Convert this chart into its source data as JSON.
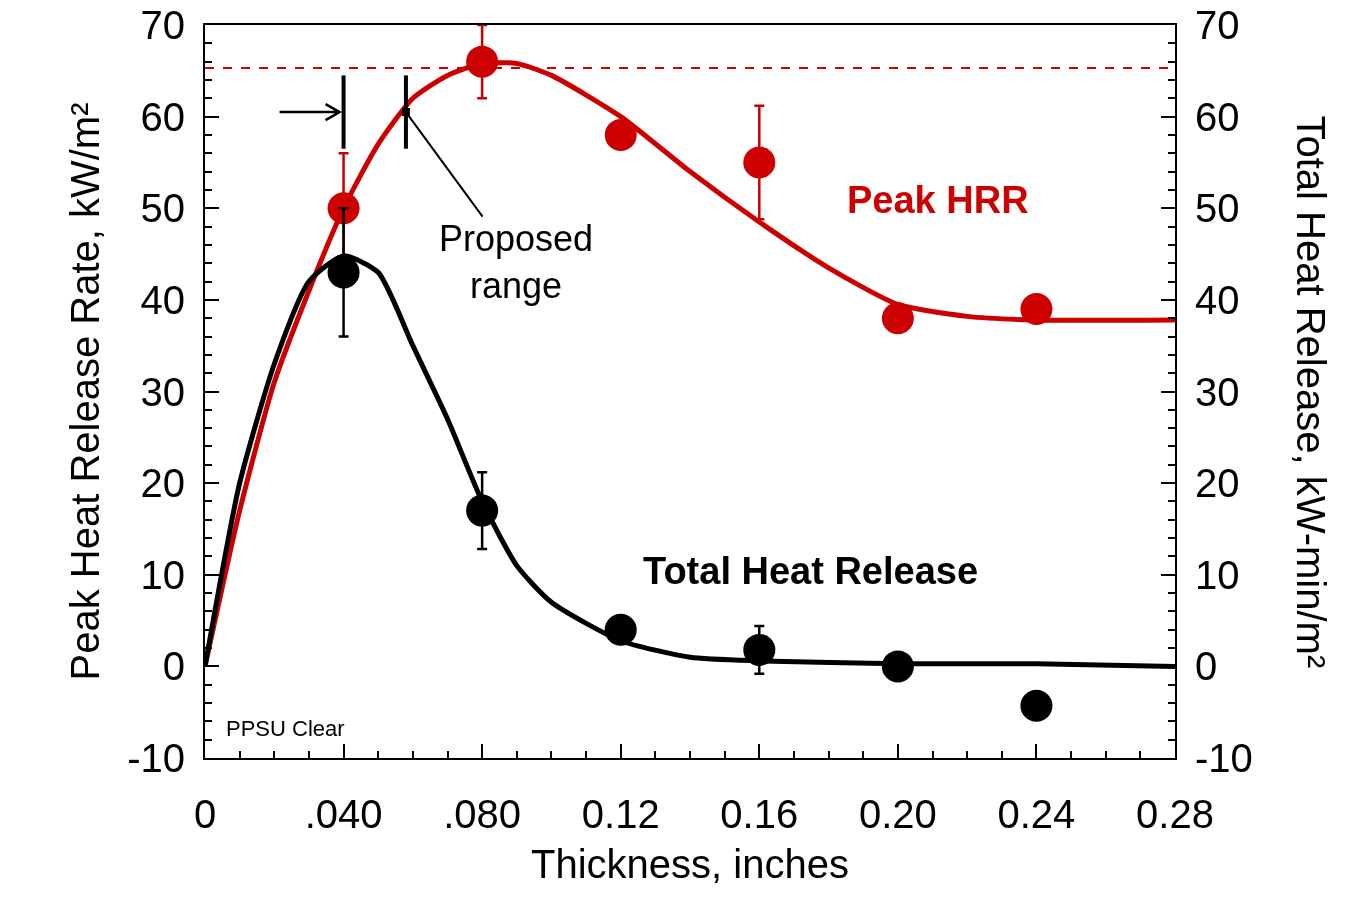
{
  "chart_data": {
    "type": "scatter",
    "xlabel": "Thickness, inches",
    "ylabel": "Peak Heat Release Rate, kW/m²",
    "y2label": "Total Heat Release, kW-min/m²",
    "xlim": [
      0,
      0.28
    ],
    "xticks": [
      0,
      {
        "value": 0.04,
        "label": ".040"
      },
      {
        "value": 0.08,
        "label": ".080"
      },
      0.12,
      0.16,
      {
        "value": 0.2,
        "label": "0.20"
      },
      0.24,
      0.28
    ],
    "ylim": [
      -10,
      70
    ],
    "yticks": [
      -10,
      0,
      10,
      20,
      30,
      40,
      50,
      60,
      70
    ],
    "y2lim": [
      -10,
      70
    ],
    "y2ticks": [
      -10,
      0,
      10,
      20,
      30,
      40,
      50,
      60,
      70
    ],
    "marker": "circle",
    "grid": false,
    "series": [
      {
        "name": "Peak HRR",
        "color": "#cc0000",
        "x": [
          0.04,
          0.08,
          0.12,
          0.16,
          0.2,
          0.24
        ],
        "values": [
          50,
          66,
          58,
          55,
          38,
          39
        ],
        "errors": [
          6,
          4,
          null,
          6.2,
          null,
          null
        ]
      },
      {
        "type": "line",
        "marker": "none",
        "color": "#cc0000",
        "x": [
          0,
          0.01,
          0.02,
          0.03,
          0.04,
          0.05,
          0.06,
          0.07,
          0.08,
          0.09,
          0.1,
          0.12,
          0.14,
          0.16,
          0.18,
          0.2,
          0.22,
          0.24,
          0.28
        ],
        "values": [
          0,
          17,
          31,
          41,
          50,
          57,
          62,
          64.5,
          65.8,
          65.8,
          64.5,
          60,
          54,
          48.5,
          43.5,
          39.5,
          38.2,
          37.8,
          37.8
        ]
      },
      {
        "name": "Total Heat Release",
        "axis": "y2",
        "color": "#000000",
        "x": [
          0.04,
          0.08,
          0.12,
          0.16,
          0.2,
          0.24
        ],
        "values": [
          43,
          17,
          4,
          1.8,
          0,
          -4.3
        ],
        "errors": [
          7,
          4.2,
          null,
          2.6,
          null,
          null
        ]
      },
      {
        "type": "line",
        "marker": "none",
        "axis": "y2",
        "color": "#000000",
        "x": [
          0,
          0.01,
          0.02,
          0.03,
          0.04,
          0.05,
          0.06,
          0.07,
          0.08,
          0.09,
          0.1,
          0.12,
          0.14,
          0.16,
          0.2,
          0.24,
          0.28
        ],
        "values": [
          0,
          20,
          33,
          42,
          44.8,
          43,
          35,
          27,
          18,
          11,
          7,
          2.8,
          1,
          0.6,
          0.3,
          0.3,
          0
        ]
      }
    ],
    "ref_lines": [
      {
        "axis": "y",
        "value": 65.3,
        "color": "#cc0000",
        "line_style": "dashed"
      },
      {
        "axis": "x",
        "value": 0.04,
        "color": "#000000"
      },
      {
        "axis": "x",
        "value": 0.058,
        "color": "#000000"
      }
    ],
    "annotations": [
      {
        "text": "Proposed range",
        "x": 0.058,
        "y": 60.5
      },
      "PPSU Clear"
    ]
  }
}
